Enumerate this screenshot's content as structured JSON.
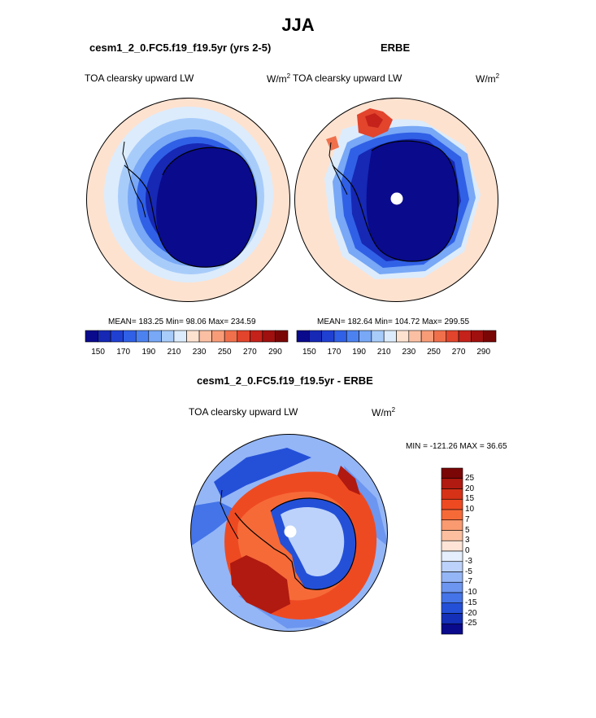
{
  "figure": {
    "season": "JJA",
    "left_panel": {
      "case": "cesm1_2_0.FC5.f19_f19.5yr (yrs 2-5)",
      "variable": "TOA clearsky upward LW",
      "units_base": "W/m",
      "units_exp": "2",
      "stats": "MEAN= 183.25  Min=  98.06  Max= 234.59"
    },
    "right_panel": {
      "case": "ERBE",
      "variable": "TOA clearsky upward LW",
      "units_base": "W/m",
      "units_exp": "2",
      "stats": "MEAN= 182.64  Min= 104.72  Max= 299.55"
    },
    "diff_panel": {
      "case": "cesm1_2_0.FC5.f19_f19.5yr - ERBE",
      "variable": "TOA clearsky upward LW",
      "units_base": "W/m",
      "units_exp": "2",
      "stats": "MIN = -121.26 MAX =  36.65"
    }
  },
  "chart_data": [
    {
      "type": "heatmap",
      "projection": "south-polar-stereographic",
      "title": "cesm1_2_0.FC5.f19_f19.5yr (yrs 2-5)",
      "subtitle": "TOA clearsky upward LW",
      "units": "W/m2",
      "mean": 183.25,
      "min": 98.06,
      "max": 234.59,
      "levels": [
        150,
        160,
        170,
        180,
        190,
        200,
        210,
        220,
        230,
        240,
        250,
        260,
        270,
        280,
        290
      ],
      "tick_labels": [
        "150",
        "170",
        "190",
        "210",
        "230",
        "250",
        "270",
        "290"
      ],
      "colors": [
        "#0a0a8c",
        "#1628b4",
        "#2040d2",
        "#3060e6",
        "#4c82f0",
        "#78a8f6",
        "#a8ccfa",
        "#dcecfc",
        "#fde2d0",
        "#fbc0a4",
        "#f89c78",
        "#f0704c",
        "#e2442c",
        "#c4221a",
        "#a0100e",
        "#7a0606"
      ]
    },
    {
      "type": "heatmap",
      "projection": "south-polar-stereographic",
      "title": "ERBE",
      "subtitle": "TOA clearsky upward LW",
      "units": "W/m2",
      "mean": 182.64,
      "min": 104.72,
      "max": 299.55,
      "levels": [
        150,
        160,
        170,
        180,
        190,
        200,
        210,
        220,
        230,
        240,
        250,
        260,
        270,
        280,
        290
      ],
      "tick_labels": [
        "150",
        "170",
        "190",
        "210",
        "230",
        "250",
        "270",
        "290"
      ],
      "colors": [
        "#0a0a8c",
        "#1628b4",
        "#2040d2",
        "#3060e6",
        "#4c82f0",
        "#78a8f6",
        "#a8ccfa",
        "#dcecfc",
        "#fde2d0",
        "#fbc0a4",
        "#f89c78",
        "#f0704c",
        "#e2442c",
        "#c4221a",
        "#a0100e",
        "#7a0606"
      ]
    },
    {
      "type": "heatmap",
      "projection": "south-polar-stereographic",
      "title": "cesm1_2_0.FC5.f19_f19.5yr - ERBE",
      "subtitle": "TOA clearsky upward LW",
      "units": "W/m2",
      "min": -121.26,
      "max": 36.65,
      "tick_labels": [
        "25",
        "20",
        "15",
        "10",
        "7",
        "5",
        "3",
        "0",
        "-3",
        "-5",
        "-7",
        "-10",
        "-15",
        "-20",
        "-25"
      ],
      "colors": [
        "#7a0606",
        "#b01a10",
        "#d63218",
        "#ee4a22",
        "#f66a38",
        "#f99a70",
        "#fbbfa0",
        "#fde4d6",
        "#e4eefc",
        "#bcd2fa",
        "#94b6f6",
        "#6c96f0",
        "#4474e8",
        "#2450d8",
        "#1430b8",
        "#0a0a8c"
      ]
    }
  ]
}
